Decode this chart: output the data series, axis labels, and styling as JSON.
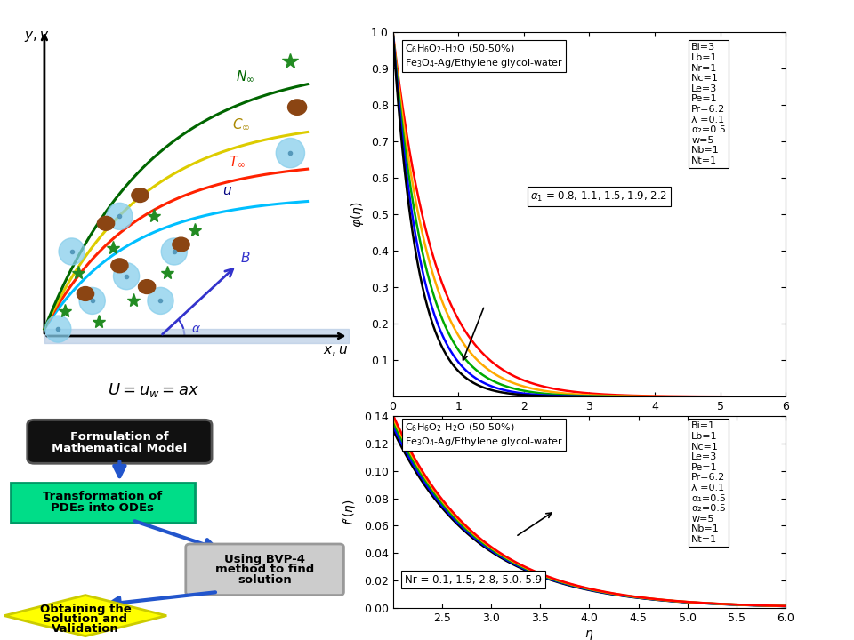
{
  "top_plot": {
    "xlim": [
      0,
      6
    ],
    "ylim": [
      0,
      1
    ],
    "yticks": [
      0.1,
      0.2,
      0.3,
      0.4,
      0.5,
      0.6,
      0.7,
      0.8,
      0.9,
      1.0
    ],
    "xticks": [
      0,
      1,
      2,
      3,
      4,
      5,
      6
    ],
    "params": [
      "Bi=3",
      "Lb=1",
      "Nr=1",
      "Nc=1",
      "Le=3",
      "Pe=1",
      "Pr=6.2",
      "λ =0.1",
      "α₂=0.5",
      "w=5",
      "Nb=1",
      "Nt=1"
    ],
    "alpha_values": [
      0.8,
      1.1,
      1.5,
      1.9,
      2.2
    ],
    "decay_rates": [
      1.55,
      1.78,
      2.05,
      2.35,
      2.65
    ],
    "colors": [
      "#ff0000",
      "#ffaa00",
      "#00aa00",
      "#0000ff",
      "#000000"
    ]
  },
  "bottom_plot": {
    "xlim": [
      2.0,
      6.0
    ],
    "ylim": [
      0,
      0.14
    ],
    "yticks": [
      0,
      0.02,
      0.04,
      0.06,
      0.08,
      0.1,
      0.12,
      0.14
    ],
    "xticks": [
      2.5,
      3.0,
      3.5,
      4.0,
      4.5,
      5.0,
      5.5,
      6.0
    ],
    "params": [
      "Bi=1",
      "Lb=1",
      "Nc=1",
      "Le=3",
      "Pe=1",
      "Pr=6.2",
      "λ =0.1",
      "α₁=0.5",
      "α₂=0.5",
      "w=5",
      "Nb=1",
      "Nt=1"
    ],
    "Nr_values": [
      0.1,
      1.5,
      2.8,
      5.0,
      5.9
    ],
    "amplitudes": [
      0.13,
      0.133,
      0.136,
      0.139,
      0.141
    ],
    "decay_rates": [
      1.15,
      1.15,
      1.15,
      1.15,
      1.15
    ],
    "colors": [
      "#000000",
      "#0000ff",
      "#00aa00",
      "#ffaa00",
      "#ff0000"
    ]
  },
  "bg_color": "#ffffff"
}
